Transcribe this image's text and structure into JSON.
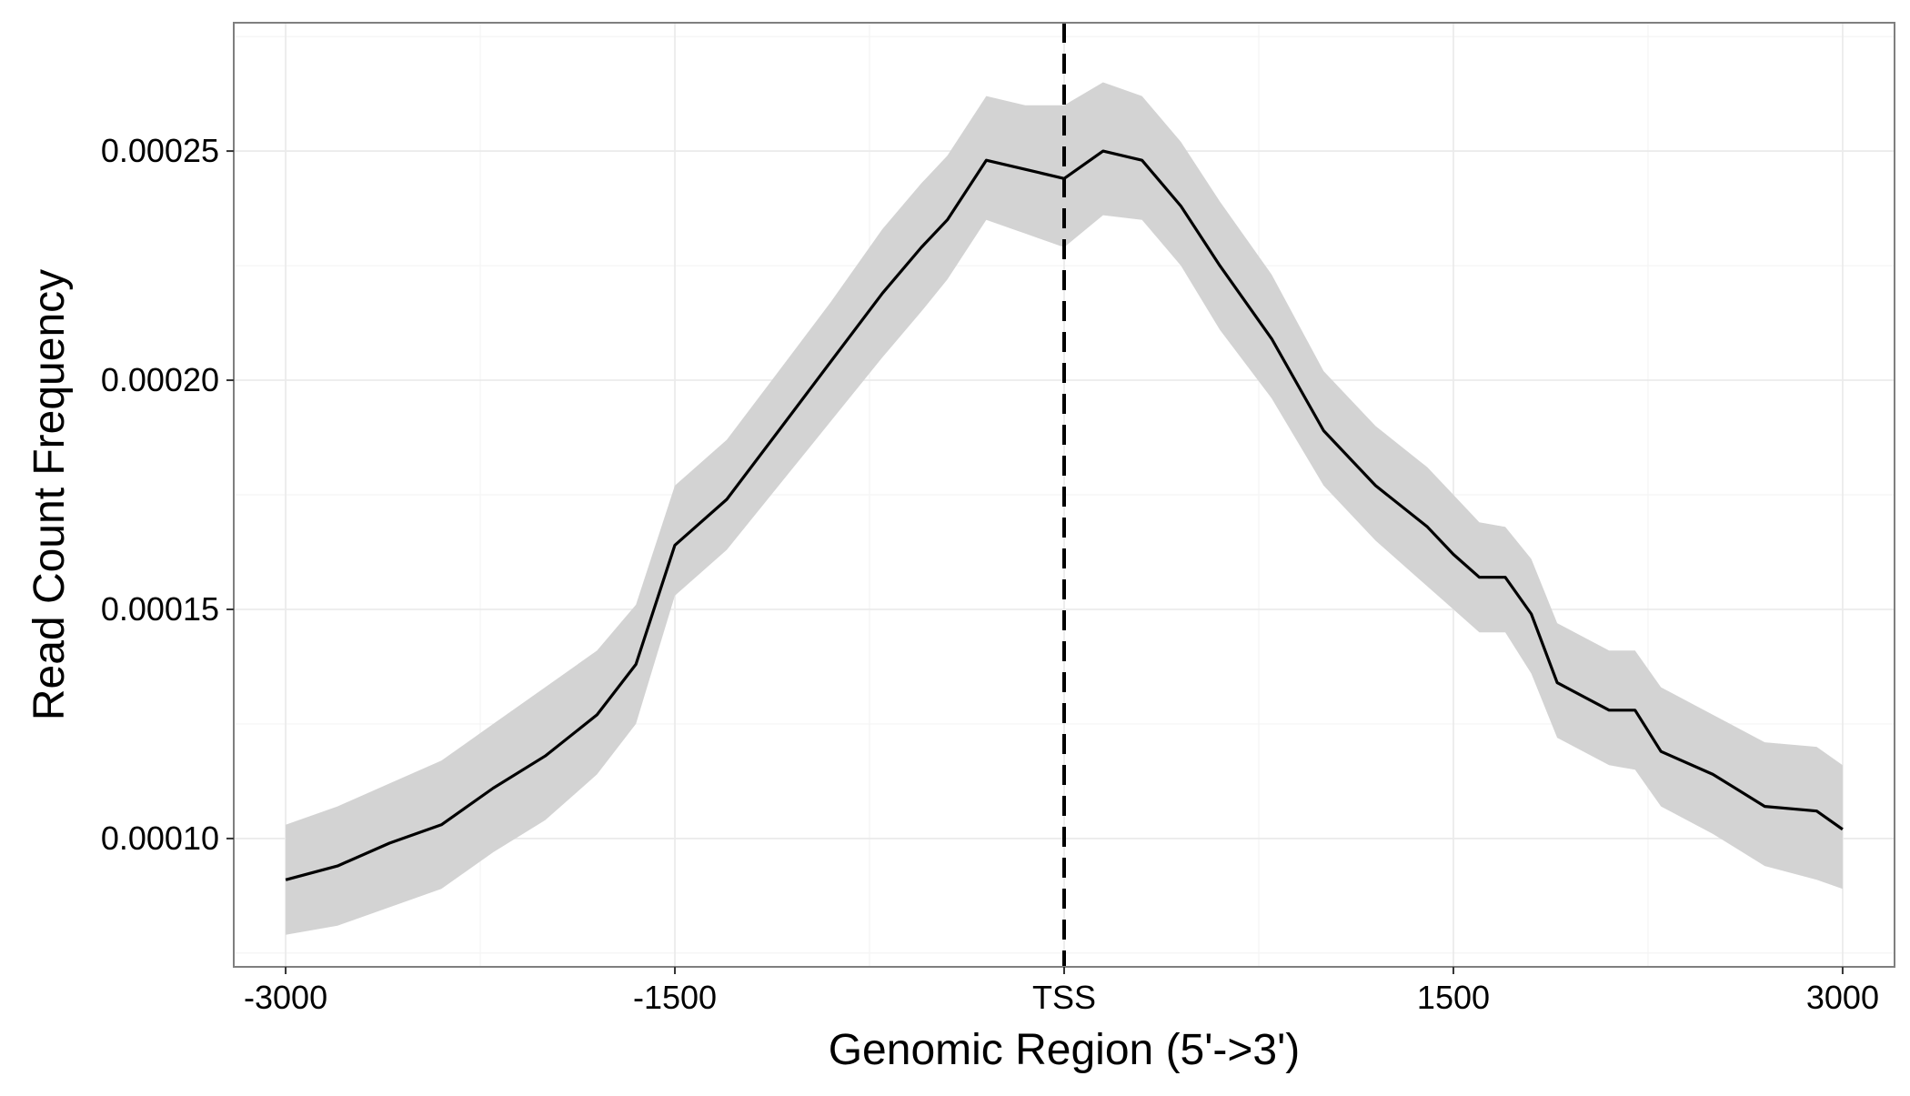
{
  "chart_data": {
    "type": "line",
    "xlabel": "Genomic Region (5'->3')",
    "ylabel": "Read Count Frequency",
    "xlim": [
      -3200,
      3200
    ],
    "ylim": [
      7.2e-05,
      0.000278
    ],
    "grid": true,
    "x_ticks": [
      {
        "value": -3000,
        "label": "-3000"
      },
      {
        "value": -1500,
        "label": "-1500"
      },
      {
        "value": 0,
        "label": "TSS"
      },
      {
        "value": 1500,
        "label": "1500"
      },
      {
        "value": 3000,
        "label": "3000"
      }
    ],
    "y_ticks": [
      {
        "value": 0.0001,
        "label": "0.00010"
      },
      {
        "value": 0.00015,
        "label": "0.00015"
      },
      {
        "value": 0.0002,
        "label": "0.00020"
      },
      {
        "value": 0.00025,
        "label": "0.00025"
      }
    ],
    "reference_line": {
      "x": 0,
      "style": "dashed"
    },
    "series": [
      {
        "x": [
          -3000,
          -2800,
          -2600,
          -2400,
          -2200,
          -2000,
          -1800,
          -1650,
          -1500,
          -1300,
          -1100,
          -900,
          -700,
          -550,
          -450,
          -300,
          -150,
          0,
          150,
          300,
          450,
          600,
          800,
          1000,
          1200,
          1400,
          1500,
          1600,
          1700,
          1800,
          1900,
          2100,
          2200,
          2300,
          2500,
          2700,
          2900,
          3000
        ],
        "y": [
          9.1e-05,
          9.4e-05,
          9.9e-05,
          0.000103,
          0.000111,
          0.000118,
          0.000127,
          0.000138,
          0.000164,
          0.000174,
          0.000189,
          0.000204,
          0.000219,
          0.000229,
          0.000235,
          0.000248,
          0.000246,
          0.000244,
          0.00025,
          0.000248,
          0.000238,
          0.000225,
          0.000209,
          0.000189,
          0.000177,
          0.000168,
          0.000162,
          0.000157,
          0.000157,
          0.000149,
          0.000134,
          0.000128,
          0.000128,
          0.000119,
          0.000114,
          0.000107,
          0.000106,
          0.000102
        ],
        "ci_lower": [
          7.9e-05,
          8.1e-05,
          8.5e-05,
          8.9e-05,
          9.7e-05,
          0.000104,
          0.000114,
          0.000125,
          0.000153,
          0.000163,
          0.000177,
          0.000191,
          0.000205,
          0.000215,
          0.000222,
          0.000235,
          0.000232,
          0.000229,
          0.000236,
          0.000235,
          0.000225,
          0.000211,
          0.000196,
          0.000177,
          0.000165,
          0.000155,
          0.00015,
          0.000145,
          0.000145,
          0.000136,
          0.000122,
          0.000116,
          0.000115,
          0.000107,
          0.000101,
          9.4e-05,
          9.1e-05,
          8.9e-05
        ],
        "ci_upper": [
          0.000103,
          0.000107,
          0.000112,
          0.000117,
          0.000125,
          0.000133,
          0.000141,
          0.000151,
          0.000177,
          0.000187,
          0.000202,
          0.000217,
          0.000233,
          0.000243,
          0.000249,
          0.000262,
          0.00026,
          0.00026,
          0.000265,
          0.000262,
          0.000252,
          0.000239,
          0.000223,
          0.000202,
          0.00019,
          0.000181,
          0.000175,
          0.000169,
          0.000168,
          0.000161,
          0.000147,
          0.000141,
          0.000141,
          0.000133,
          0.000127,
          0.000121,
          0.00012,
          0.000116
        ]
      }
    ],
    "colors": {
      "line": "#000000",
      "ribbon": "#d3d3d3",
      "grid": "#ebebeb",
      "panel_border": "#7f7f7f",
      "background": "#ffffff"
    }
  }
}
